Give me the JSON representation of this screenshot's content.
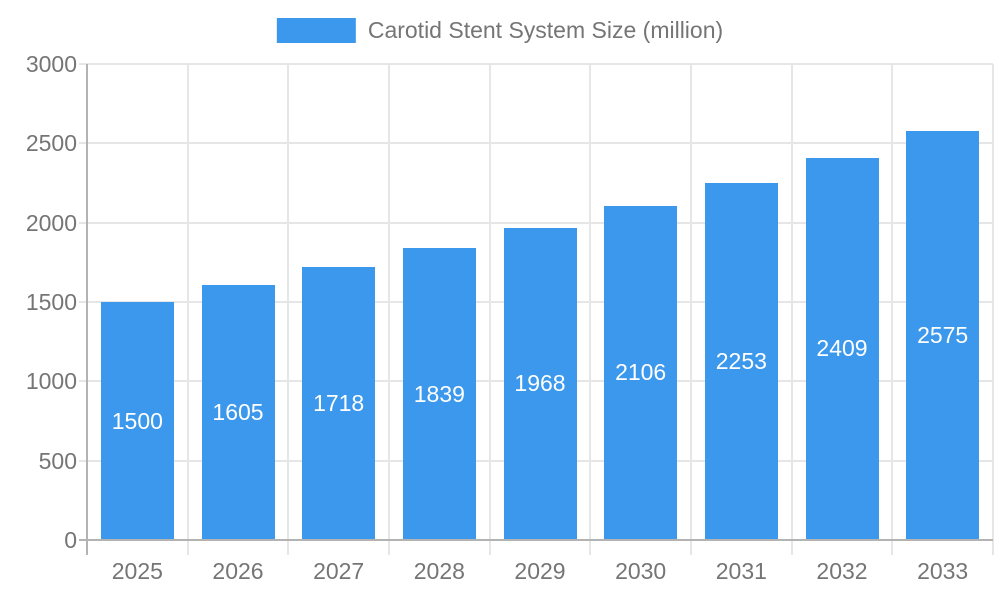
{
  "colors": {
    "bar": "#3b98ec",
    "grid": "#e6e6e6",
    "axis": "#b3b3b3",
    "label": "#757575",
    "value_label": "#ffffff",
    "background": "#ffffff"
  },
  "legend": {
    "label": "Carotid Stent System Size (million)"
  },
  "chart_data": {
    "type": "bar",
    "title": "Carotid Stent System Size (million)",
    "categories": [
      "2025",
      "2026",
      "2027",
      "2028",
      "2029",
      "2030",
      "2031",
      "2032",
      "2033"
    ],
    "series": [
      {
        "name": "Carotid Stent System Size (million)",
        "values": [
          1500,
          1605,
          1718,
          1839,
          1968,
          2106,
          2253,
          2409,
          2575
        ]
      }
    ],
    "xlabel": "",
    "ylabel": "",
    "ylim": [
      0,
      3000
    ],
    "yticks": [
      0,
      500,
      1000,
      1500,
      2000,
      2500,
      3000
    ],
    "grid": true,
    "legend_position": "top-center",
    "value_label_position": "inside-center"
  }
}
